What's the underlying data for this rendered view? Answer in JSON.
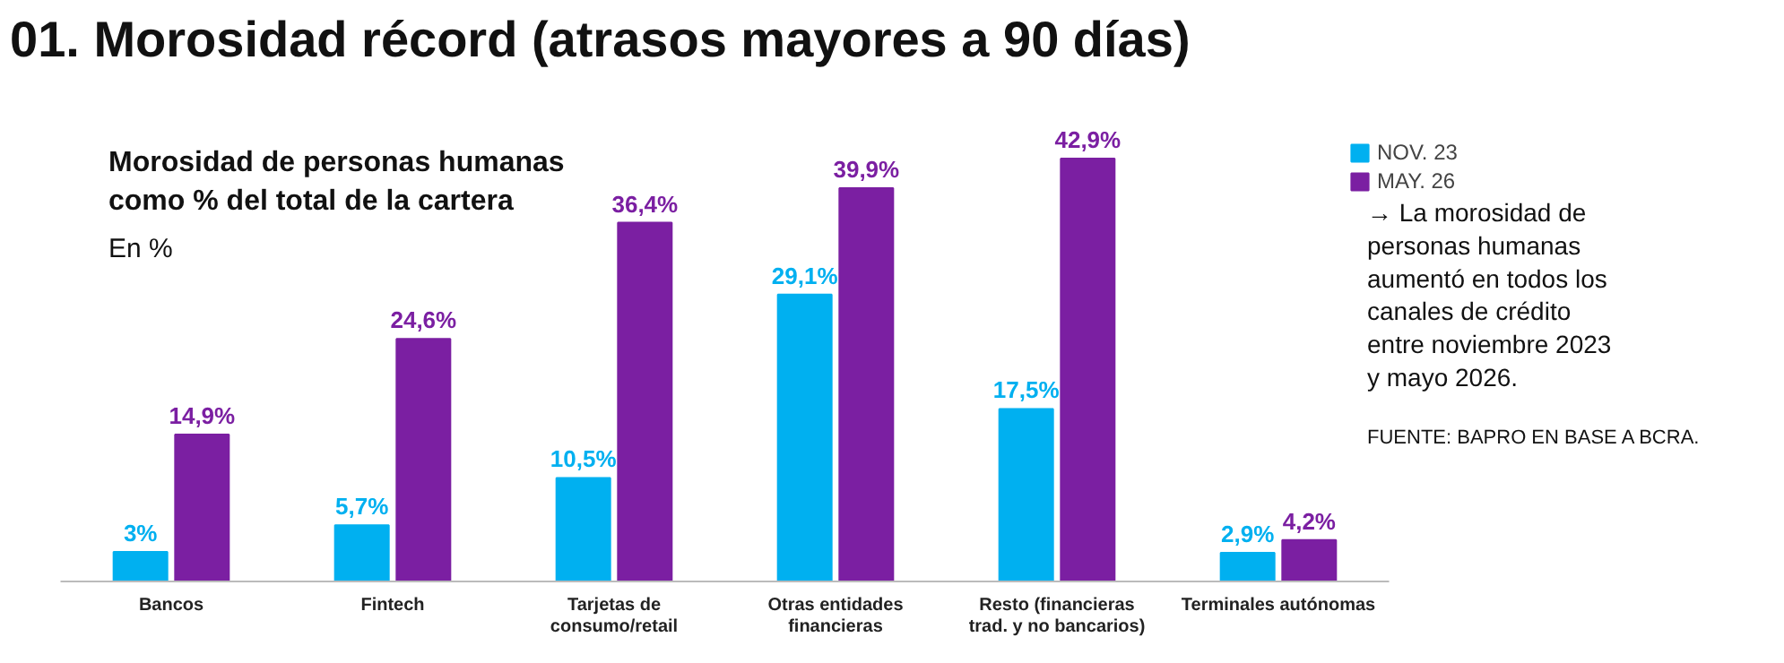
{
  "chart_data": {
    "type": "bar",
    "title": "01. Morosidad récord (atrasos mayores a 90 días)",
    "subtitle": "Morosidad de personas humanas como % del total de la cartera",
    "ylabel": "En %",
    "categories": [
      "Bancos",
      "Fintech",
      "Tarjetas de consumo/retail",
      "Otras entidades financieras",
      "Resto (financieras trad. y no bancarios)",
      "Terminales autónomas"
    ],
    "series": [
      {
        "name": "NOV. 23",
        "color": "#00b0f0",
        "values": [
          3,
          5.7,
          10.5,
          29.1,
          17.5,
          2.9
        ],
        "value_labels": [
          "3%",
          "5,7%",
          "10,5%",
          "29,1%",
          "17,5%",
          "2,9%"
        ]
      },
      {
        "name": "MAY. 26",
        "color": "#7b1fa2",
        "values": [
          14.9,
          24.6,
          36.4,
          39.9,
          42.9,
          4.2
        ],
        "value_labels": [
          "14,9%",
          "24,6%",
          "36,4%",
          "39,9%",
          "42,9%",
          "4,2%"
        ]
      }
    ],
    "legend": "right",
    "annotations": [
      "→ La morosidad de personas humanas aumentó en todos los canales de crédito entre noviembre 2023 y mayo 2026.",
      "FUENTE: BAPRO EN BASE A BCRA."
    ]
  }
}
